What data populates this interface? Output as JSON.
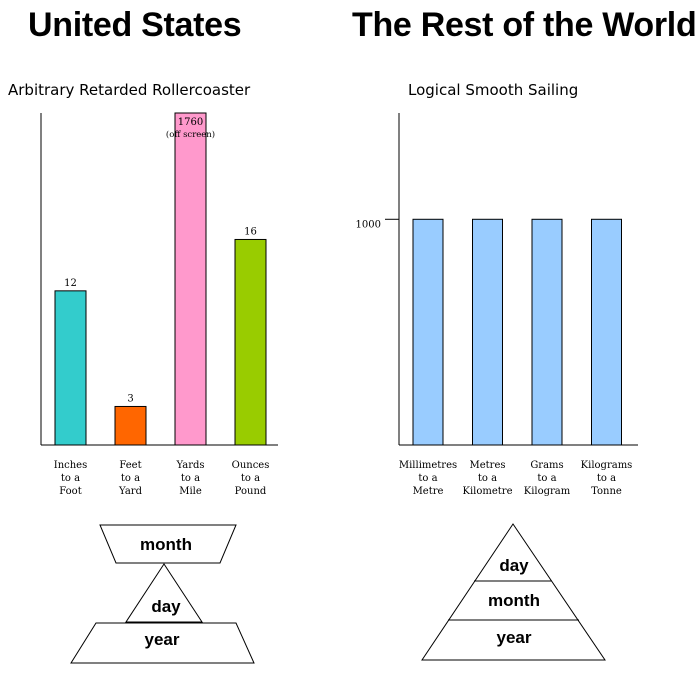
{
  "headings": {
    "left": "United States",
    "right": "The Rest of the World"
  },
  "chart_data": [
    {
      "type": "bar",
      "title": "Arbitrary Retarded Rollercoaster",
      "categories": [
        [
          "Inches",
          "to a",
          "Foot"
        ],
        [
          "Feet",
          "to a",
          "Yard"
        ],
        [
          "Yards",
          "to a",
          "Mile"
        ],
        [
          "Ounces",
          "to a",
          "Pound"
        ]
      ],
      "values": [
        12,
        3,
        1760,
        16
      ],
      "value_labels": [
        "12",
        "3",
        "1760",
        "16"
      ],
      "offscreen_note": "(off screen)",
      "colors": [
        "#33cccc",
        "#ff6600",
        "#ff99cc",
        "#99cc00"
      ],
      "ylim": [
        0,
        26
      ],
      "grid": false,
      "xlabel": "",
      "ylabel": ""
    },
    {
      "type": "bar",
      "title": "Logical Smooth Sailing",
      "categories": [
        [
          "Millimetres",
          "to a",
          "Metre"
        ],
        [
          "Metres",
          "to a",
          "Kilometre"
        ],
        [
          "Grams",
          "to a",
          "Kilogram"
        ],
        [
          "Kilograms",
          "to a",
          "Tonne"
        ]
      ],
      "values": [
        1000,
        1000,
        1000,
        1000
      ],
      "colors": [
        "#99ccff",
        "#99ccff",
        "#99ccff",
        "#99ccff"
      ],
      "yticks": [
        1000
      ],
      "ytick_labels": [
        "1000"
      ],
      "ylim": [
        0,
        1400
      ],
      "grid": false,
      "xlabel": "",
      "ylabel": ""
    }
  ],
  "date_formats": {
    "us": {
      "top": "month",
      "middle": "day",
      "bottom": "year"
    },
    "world": {
      "top": "day",
      "middle": "month",
      "bottom": "year"
    }
  }
}
